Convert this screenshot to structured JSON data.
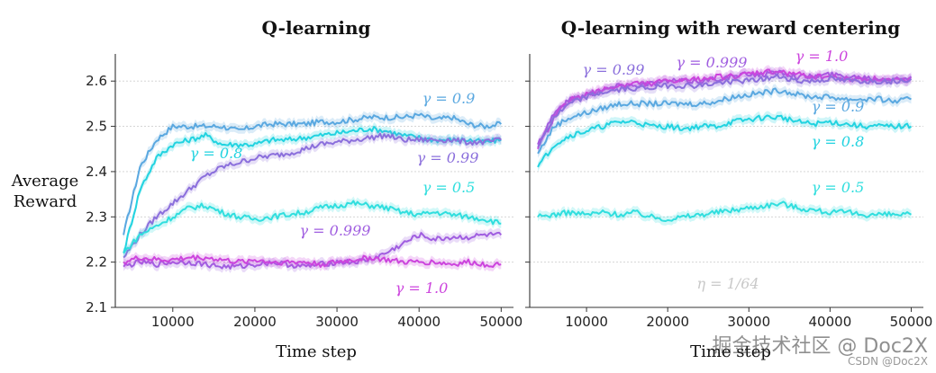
{
  "chart_data": [
    {
      "type": "line",
      "title": "Q-learning",
      "xlabel": "Time step",
      "ylabel": "Average\nReward",
      "xlim": [
        3000,
        51500
      ],
      "ylim": [
        2.1,
        2.66
      ],
      "xticks": [
        10000,
        20000,
        30000,
        40000,
        50000
      ],
      "yticks": [
        2.1,
        2.2,
        2.3,
        2.4,
        2.5,
        2.6
      ],
      "grid": "horizontal dotted",
      "series": [
        {
          "name": "γ = 0.9",
          "label": "γ = 0.9",
          "color": "#5aa8e0",
          "x": [
            4000,
            6000,
            8000,
            10000,
            12000,
            14000,
            16000,
            18000,
            20000,
            22000,
            24000,
            26000,
            28000,
            30000,
            32000,
            34000,
            36000,
            38000,
            40000,
            42000,
            44000,
            46000,
            48000,
            50000
          ],
          "y": [
            2.26,
            2.41,
            2.47,
            2.5,
            2.5,
            2.5,
            2.5,
            2.49,
            2.5,
            2.505,
            2.505,
            2.505,
            2.51,
            2.51,
            2.515,
            2.52,
            2.52,
            2.52,
            2.525,
            2.515,
            2.52,
            2.505,
            2.5,
            2.505
          ]
        },
        {
          "name": "γ = 0.8",
          "label": "γ = 0.8",
          "color": "#22d3e0",
          "x": [
            4000,
            6000,
            8000,
            10000,
            12000,
            14000,
            16000,
            18000,
            20000,
            22000,
            24000,
            26000,
            28000,
            30000,
            32000,
            34000,
            36000,
            38000,
            40000,
            42000,
            44000,
            46000,
            48000,
            50000
          ],
          "y": [
            2.22,
            2.36,
            2.43,
            2.46,
            2.47,
            2.48,
            2.46,
            2.46,
            2.46,
            2.47,
            2.47,
            2.475,
            2.48,
            2.485,
            2.49,
            2.495,
            2.49,
            2.48,
            2.475,
            2.47,
            2.47,
            2.47,
            2.465,
            2.47
          ]
        },
        {
          "name": "γ = 0.99",
          "label": "γ = 0.99",
          "color": "#8b6fdc",
          "x": [
            4000,
            6000,
            8000,
            10000,
            12000,
            14000,
            16000,
            18000,
            20000,
            22000,
            24000,
            26000,
            28000,
            30000,
            32000,
            34000,
            36000,
            38000,
            40000,
            42000,
            44000,
            46000,
            48000,
            50000
          ],
          "y": [
            2.21,
            2.26,
            2.3,
            2.33,
            2.36,
            2.39,
            2.41,
            2.42,
            2.43,
            2.435,
            2.44,
            2.45,
            2.46,
            2.465,
            2.47,
            2.475,
            2.48,
            2.47,
            2.47,
            2.47,
            2.47,
            2.465,
            2.465,
            2.47
          ]
        },
        {
          "name": "γ = 0.5",
          "label": "γ = 0.5",
          "color": "#30dede",
          "x": [
            4000,
            6000,
            8000,
            10000,
            12000,
            14000,
            16000,
            18000,
            20000,
            22000,
            24000,
            26000,
            28000,
            30000,
            32000,
            34000,
            36000,
            38000,
            40000,
            42000,
            44000,
            46000,
            48000,
            50000
          ],
          "y": [
            2.22,
            2.26,
            2.28,
            2.3,
            2.32,
            2.325,
            2.31,
            2.3,
            2.295,
            2.3,
            2.305,
            2.31,
            2.32,
            2.325,
            2.33,
            2.325,
            2.32,
            2.31,
            2.305,
            2.31,
            2.305,
            2.3,
            2.295,
            2.285
          ]
        },
        {
          "name": "γ = 0.999",
          "label": "γ = 0.999",
          "color": "#a05ee0",
          "x": [
            4000,
            6000,
            8000,
            10000,
            12000,
            14000,
            16000,
            18000,
            20000,
            22000,
            24000,
            26000,
            28000,
            30000,
            32000,
            34000,
            36000,
            38000,
            40000,
            42000,
            44000,
            46000,
            48000,
            50000
          ],
          "y": [
            2.19,
            2.2,
            2.195,
            2.2,
            2.2,
            2.195,
            2.19,
            2.19,
            2.195,
            2.2,
            2.195,
            2.19,
            2.195,
            2.2,
            2.2,
            2.205,
            2.22,
            2.24,
            2.26,
            2.25,
            2.255,
            2.255,
            2.26,
            2.26
          ]
        },
        {
          "name": "γ = 1.0",
          "label": "γ = 1.0",
          "color": "#cc44dd",
          "x": [
            4000,
            6000,
            8000,
            10000,
            12000,
            14000,
            16000,
            18000,
            20000,
            22000,
            24000,
            26000,
            28000,
            30000,
            32000,
            34000,
            36000,
            38000,
            40000,
            42000,
            44000,
            46000,
            48000,
            50000
          ],
          "y": [
            2.2,
            2.21,
            2.205,
            2.205,
            2.21,
            2.21,
            2.205,
            2.2,
            2.205,
            2.2,
            2.2,
            2.2,
            2.195,
            2.2,
            2.205,
            2.21,
            2.205,
            2.2,
            2.2,
            2.2,
            2.195,
            2.2,
            2.195,
            2.195
          ]
        }
      ]
    },
    {
      "type": "line",
      "title": "Q-learning with reward centering",
      "xlabel": "Time step",
      "xlim": [
        3000,
        51500
      ],
      "ylim": [
        2.1,
        2.66
      ],
      "xticks": [
        10000,
        20000,
        30000,
        40000,
        50000
      ],
      "yticks": [
        2.1,
        2.2,
        2.3,
        2.4,
        2.5,
        2.6
      ],
      "grid": "horizontal dotted",
      "annotation": "η = 1/64",
      "series": [
        {
          "name": "γ = 0.999",
          "label": "γ = 0.999",
          "color": "#a05ee0",
          "x": [
            4000,
            6000,
            8000,
            10000,
            12000,
            14000,
            16000,
            18000,
            20000,
            22000,
            24000,
            26000,
            28000,
            30000,
            32000,
            34000,
            36000,
            38000,
            40000,
            42000,
            44000,
            46000,
            48000,
            50000
          ],
          "y": [
            2.46,
            2.53,
            2.56,
            2.57,
            2.58,
            2.59,
            2.59,
            2.595,
            2.6,
            2.6,
            2.6,
            2.605,
            2.61,
            2.615,
            2.615,
            2.62,
            2.61,
            2.61,
            2.615,
            2.61,
            2.61,
            2.605,
            2.605,
            2.61
          ]
        },
        {
          "name": "γ = 1.0",
          "label": "γ = 1.0",
          "color": "#cc44dd",
          "x": [
            4000,
            6000,
            8000,
            10000,
            12000,
            14000,
            16000,
            18000,
            20000,
            22000,
            24000,
            26000,
            28000,
            30000,
            32000,
            34000,
            36000,
            38000,
            40000,
            42000,
            44000,
            46000,
            48000,
            50000
          ],
          "y": [
            2.45,
            2.52,
            2.56,
            2.57,
            2.58,
            2.59,
            2.595,
            2.595,
            2.6,
            2.6,
            2.605,
            2.61,
            2.61,
            2.615,
            2.62,
            2.62,
            2.615,
            2.61,
            2.61,
            2.605,
            2.605,
            2.605,
            2.6,
            2.605
          ]
        },
        {
          "name": "γ = 0.99",
          "label": "γ = 0.99",
          "color": "#8b6fdc",
          "x": [
            4000,
            6000,
            8000,
            10000,
            12000,
            14000,
            16000,
            18000,
            20000,
            22000,
            24000,
            26000,
            28000,
            30000,
            32000,
            34000,
            36000,
            38000,
            40000,
            42000,
            44000,
            46000,
            48000,
            50000
          ],
          "y": [
            2.455,
            2.52,
            2.55,
            2.565,
            2.575,
            2.58,
            2.585,
            2.585,
            2.59,
            2.59,
            2.59,
            2.595,
            2.6,
            2.6,
            2.605,
            2.61,
            2.6,
            2.6,
            2.605,
            2.6,
            2.6,
            2.6,
            2.6,
            2.605
          ]
        },
        {
          "name": "γ = 0.9",
          "label": "γ = 0.9",
          "color": "#5aa8e0",
          "x": [
            4000,
            6000,
            8000,
            10000,
            12000,
            14000,
            16000,
            18000,
            20000,
            22000,
            24000,
            26000,
            28000,
            30000,
            32000,
            34000,
            36000,
            38000,
            40000,
            42000,
            44000,
            46000,
            48000,
            50000
          ],
          "y": [
            2.44,
            2.5,
            2.52,
            2.53,
            2.54,
            2.55,
            2.55,
            2.55,
            2.55,
            2.55,
            2.55,
            2.555,
            2.565,
            2.57,
            2.575,
            2.58,
            2.57,
            2.565,
            2.565,
            2.56,
            2.56,
            2.56,
            2.555,
            2.56
          ]
        },
        {
          "name": "γ = 0.8",
          "label": "γ = 0.8",
          "color": "#22d3e0",
          "x": [
            4000,
            6000,
            8000,
            10000,
            12000,
            14000,
            16000,
            18000,
            20000,
            22000,
            24000,
            26000,
            28000,
            30000,
            32000,
            34000,
            36000,
            38000,
            40000,
            42000,
            44000,
            46000,
            48000,
            50000
          ],
          "y": [
            2.41,
            2.46,
            2.48,
            2.49,
            2.5,
            2.51,
            2.51,
            2.5,
            2.5,
            2.495,
            2.5,
            2.5,
            2.51,
            2.515,
            2.52,
            2.52,
            2.51,
            2.505,
            2.51,
            2.505,
            2.5,
            2.5,
            2.5,
            2.5
          ]
        },
        {
          "name": "γ = 0.5",
          "label": "γ = 0.5",
          "color": "#30dede",
          "x": [
            4000,
            6000,
            8000,
            10000,
            12000,
            14000,
            16000,
            18000,
            20000,
            22000,
            24000,
            26000,
            28000,
            30000,
            32000,
            34000,
            36000,
            38000,
            40000,
            42000,
            44000,
            46000,
            48000,
            50000
          ],
          "y": [
            2.3,
            2.305,
            2.31,
            2.305,
            2.31,
            2.305,
            2.31,
            2.3,
            2.295,
            2.3,
            2.305,
            2.31,
            2.315,
            2.32,
            2.325,
            2.33,
            2.32,
            2.315,
            2.31,
            2.31,
            2.305,
            2.305,
            2.305,
            2.305
          ]
        }
      ]
    }
  ],
  "watermark": {
    "main": "掘金技术社区 @ Doc2X",
    "sub": "CSDN @Doc2X"
  }
}
